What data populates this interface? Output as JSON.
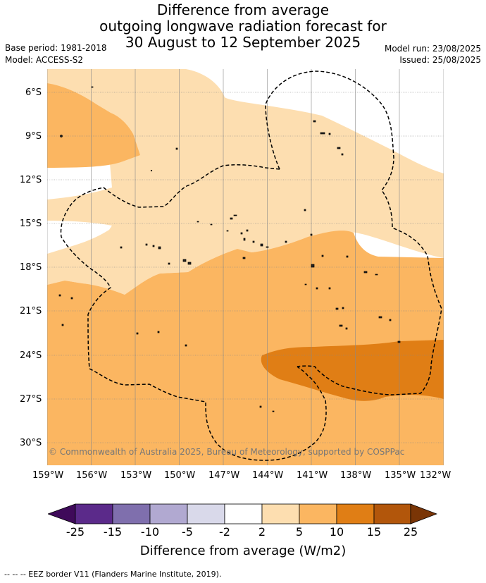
{
  "title": {
    "line1": "Difference from average",
    "line2": "outgoing longwave radiation forecast for",
    "line3": "30 August to 12 September 2025"
  },
  "meta": {
    "base_period": "Base period: 1981-2018",
    "model": "Model: ACCESS-S2",
    "model_run": "Model run: 23/08/2025",
    "issued": "Issued: 25/08/2025"
  },
  "map": {
    "lon_ticks": [
      "159°W",
      "156°W",
      "153°W",
      "150°W",
      "147°W",
      "144°W",
      "141°W",
      "138°W",
      "135°W",
      "132°W"
    ],
    "lat_ticks": [
      "6°S",
      "9°S",
      "12°S",
      "15°S",
      "18°S",
      "21°S",
      "24°S",
      "27°S",
      "30°S"
    ],
    "lon_range": [
      -159,
      -132
    ],
    "lat_range": [
      -31.6,
      -4.6
    ],
    "copyright": "© Commonwealth of Australia 2025, Bureau of Meteorology, supported by COSPPac",
    "colors": {
      "land_bg": "#ffffff",
      "band_2_5": "#fddeb0",
      "band_5_10": "#fbb661",
      "band_10_15": "#e07e15",
      "grid": "#888888"
    }
  },
  "colorbar": {
    "title": "Difference from average (W/m2)",
    "labels": [
      "-25",
      "-15",
      "-10",
      "-5",
      "-2",
      "2",
      "5",
      "10",
      "15",
      "25"
    ],
    "colors": [
      "#3f0a5a",
      "#5b2a8a",
      "#7f6fad",
      "#b1a9d1",
      "#d9d9ea",
      "#ffffff",
      "#fddeb0",
      "#fbb661",
      "#e07e15",
      "#b2560b",
      "#7a3506"
    ]
  },
  "footer": "--  --  -- EEZ border V11 (Flanders Marine Institute, 2019)."
}
